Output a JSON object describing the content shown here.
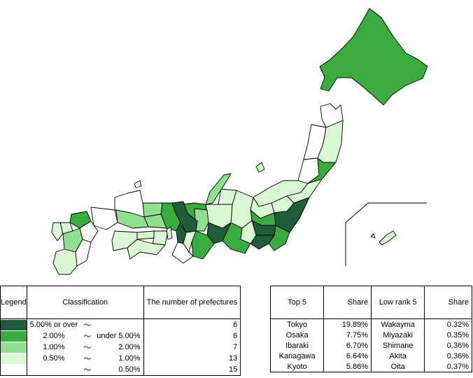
{
  "legend": {
    "header_legend": "Legend",
    "header_classification": "Classification",
    "header_count": "The number of prefectures",
    "tilde": "～",
    "classes": [
      {
        "low": "5.00% or over",
        "high": "",
        "count": "6",
        "color": "#1e5c3a"
      },
      {
        "low": "2.00%",
        "high": "under 5.00%",
        "count": "6",
        "color": "#3aab3f"
      },
      {
        "low": "1.00%",
        "high": "2.00%",
        "count": "7",
        "color": "#8ee08e"
      },
      {
        "low": "0.50%",
        "high": "1.00%",
        "count": "13",
        "color": "#d8f7d2"
      },
      {
        "low": "",
        "high": "0.50%",
        "count": "15",
        "color": "#ffffff"
      }
    ]
  },
  "ranking": {
    "header_top": "Top 5",
    "header_share": "Share",
    "header_low": "Low rank 5",
    "header_share2": "Share",
    "rows": [
      {
        "top_name": "Tokyo",
        "top_share": "19.89%",
        "low_name": "Wakayma",
        "low_share": "0.32%"
      },
      {
        "top_name": "Osaka",
        "top_share": "7.75%",
        "low_name": "Miyazaki",
        "low_share": "0.35%"
      },
      {
        "top_name": "Ibaraki",
        "top_share": "6.70%",
        "low_name": "Shimane",
        "low_share": "0.36%"
      },
      {
        "top_name": "Kanagawa",
        "top_share": "6.64%",
        "low_name": "Akita",
        "low_share": "0.36%"
      },
      {
        "top_name": "Kyoto",
        "top_share": "5.86%",
        "low_name": "Oita",
        "low_share": "0.37%"
      }
    ]
  }
}
